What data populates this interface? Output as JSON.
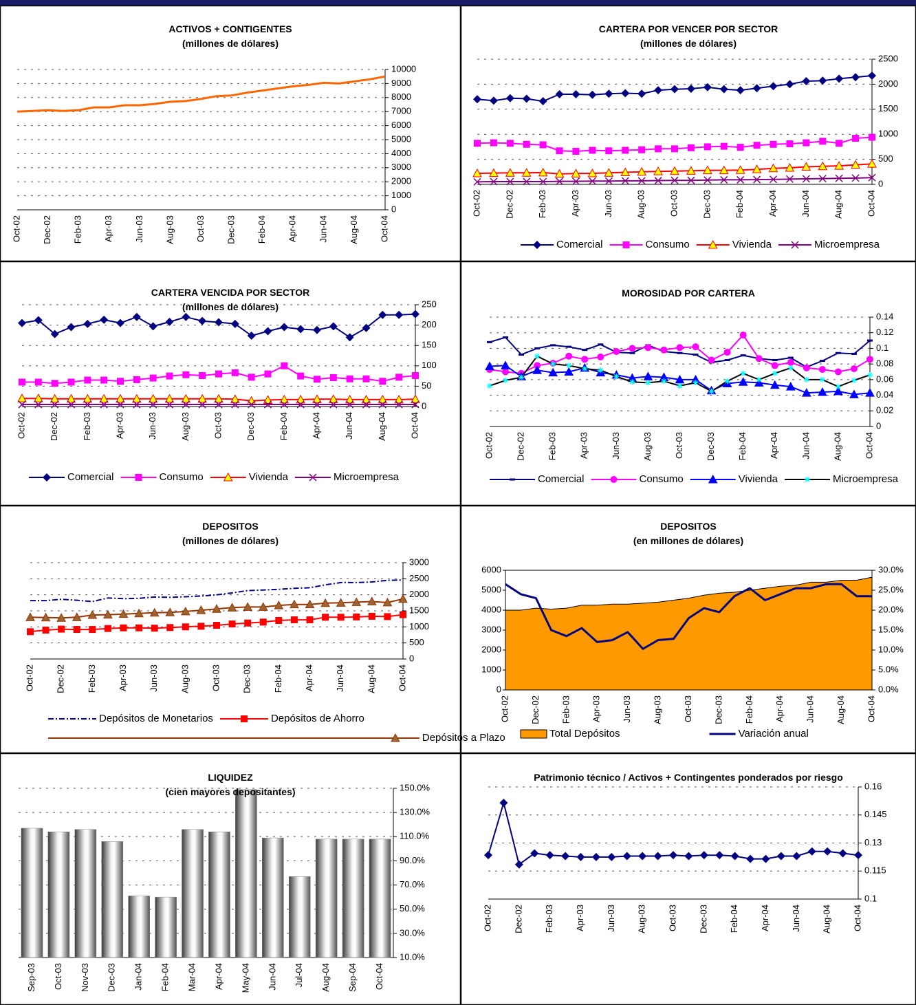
{
  "chart_data": [
    {
      "type": "line",
      "title": "ACTIVOS + CONTIGENTES",
      "subtitle": "(millones de dólares)",
      "categories": [
        "Oct-02",
        null,
        "Dec-02",
        null,
        "Feb-03",
        null,
        "Apr-03",
        null,
        "Jun-03",
        null,
        "Aug-03",
        null,
        "Oct-03",
        null,
        "Dec-03",
        null,
        "Feb-04",
        null,
        "Apr-04",
        null,
        "Jun-04",
        null,
        "Aug-04",
        null,
        "Oct-04"
      ],
      "series": [
        {
          "color": "#ff6600",
          "values": [
            7000,
            7050,
            7100,
            7050,
            7100,
            7300,
            7300,
            7450,
            7450,
            7550,
            7700,
            7750,
            7900,
            8100,
            8150,
            8350,
            8500,
            8650,
            8800,
            8900,
            9050,
            9000,
            9150,
            9300,
            9500
          ]
        }
      ],
      "ylim": [
        0,
        10000
      ],
      "yticks": [
        0,
        1000,
        2000,
        3000,
        4000,
        5000,
        6000,
        7000,
        8000,
        9000,
        10000
      ],
      "grid": true
    },
    {
      "type": "line",
      "title": "CARTERA POR VENCER POR SECTOR",
      "subtitle": "(millones de dólares)",
      "categories": [
        "Oct-02",
        null,
        "Dec-02",
        null,
        "Feb-03",
        null,
        "Apr-03",
        null,
        "Jun-03",
        null,
        "Aug-03",
        null,
        "Oct-03",
        null,
        "Dec-03",
        null,
        "Feb-04",
        null,
        "Apr-04",
        null,
        "Jun-04",
        null,
        "Aug-04",
        null,
        "Oct-04"
      ],
      "series": [
        {
          "name": "Comercial",
          "color": "#000080",
          "marker": "diamond",
          "values": [
            1700,
            1670,
            1720,
            1710,
            1660,
            1800,
            1800,
            1790,
            1810,
            1820,
            1810,
            1880,
            1900,
            1910,
            1940,
            1900,
            1880,
            1920,
            1960,
            2000,
            2060,
            2070,
            2110,
            2140,
            2170
          ]
        },
        {
          "name": "Consumo",
          "color": "#ff00ff",
          "marker": "square",
          "values": [
            820,
            830,
            820,
            800,
            790,
            670,
            660,
            680,
            670,
            680,
            690,
            710,
            710,
            730,
            750,
            760,
            740,
            780,
            800,
            810,
            830,
            860,
            820,
            920,
            940
          ]
        },
        {
          "name": "Vivienda",
          "color": "#ff0000",
          "marker": "triangle",
          "marker_color": "#ffff00",
          "values": [
            220,
            225,
            230,
            230,
            235,
            210,
            215,
            220,
            230,
            240,
            250,
            260,
            265,
            270,
            280,
            280,
            285,
            300,
            320,
            330,
            350,
            360,
            370,
            390,
            410
          ]
        },
        {
          "name": "Microempresa",
          "color": "#800080",
          "marker": "x",
          "values": [
            50,
            55,
            55,
            55,
            55,
            60,
            60,
            65,
            65,
            70,
            70,
            75,
            80,
            80,
            85,
            90,
            90,
            95,
            100,
            105,
            110,
            115,
            120,
            125,
            135
          ]
        }
      ],
      "ylim": [
        0,
        2500
      ],
      "yticks": [
        0,
        500,
        1000,
        1500,
        2000,
        2500
      ],
      "grid": true,
      "legend": "bottom"
    },
    {
      "type": "line",
      "title": "CARTERA VENCIDA POR SECTOR",
      "subtitle": "(millones de dólares)",
      "categories": [
        "Oct-02",
        null,
        "Dec-02",
        null,
        "Feb-03",
        null,
        "Apr-03",
        null,
        "Jun-03",
        null,
        "Aug-03",
        null,
        "Oct-03",
        null,
        "Dec-03",
        null,
        "Feb-04",
        null,
        "Apr-04",
        null,
        "Jun-04",
        null,
        "Aug-04",
        null,
        "Oct-04"
      ],
      "series": [
        {
          "name": "Comercial",
          "color": "#000080",
          "marker": "diamond",
          "values": [
            205,
            212,
            178,
            195,
            203,
            213,
            205,
            220,
            197,
            208,
            220,
            210,
            207,
            203,
            174,
            185,
            195,
            190,
            188,
            197,
            170,
            193,
            225,
            225,
            227
          ]
        },
        {
          "name": "Consumo",
          "color": "#ff00ff",
          "marker": "square",
          "values": [
            60,
            60,
            57,
            60,
            65,
            65,
            62,
            66,
            70,
            75,
            78,
            76,
            80,
            83,
            72,
            80,
            100,
            75,
            67,
            71,
            68,
            68,
            62,
            72,
            76
          ]
        },
        {
          "name": "Vivienda",
          "color": "#ff0000",
          "marker": "triangle",
          "marker_color": "#ffff00",
          "values": [
            20,
            20,
            19,
            19,
            19,
            19,
            19,
            19,
            19,
            19,
            19,
            19,
            19,
            18,
            14,
            16,
            17,
            17,
            18,
            18,
            17,
            17,
            17,
            17,
            18
          ]
        },
        {
          "name": "Microempresa",
          "color": "#800080",
          "marker": "x",
          "values": [
            5,
            5,
            5,
            5,
            5,
            5,
            5,
            5,
            5,
            5,
            5,
            5,
            5,
            5,
            5,
            5,
            5,
            5,
            5,
            5,
            5,
            5,
            5,
            5,
            5
          ]
        }
      ],
      "ylim": [
        0,
        250
      ],
      "yticks": [
        0,
        50,
        100,
        150,
        200,
        250
      ],
      "grid": true,
      "legend": "bottom"
    },
    {
      "type": "line",
      "title": "MOROSIDAD POR CARTERA",
      "categories": [
        "Oct-02",
        null,
        "Dec-02",
        null,
        "Feb-03",
        null,
        "Apr-03",
        null,
        "Jun-03",
        null,
        "Aug-03",
        null,
        "Oct-03",
        null,
        "Dec-03",
        null,
        "Feb-04",
        null,
        "Apr-04",
        null,
        "Jun-04",
        null,
        "Aug-04",
        null,
        "Oct-04"
      ],
      "series": [
        {
          "name": "Comercial",
          "color": "#000080",
          "marker": "dash",
          "values": [
            0.108,
            0.114,
            0.092,
            0.1,
            0.104,
            0.102,
            0.098,
            0.105,
            0.095,
            0.094,
            0.104,
            0.096,
            0.094,
            0.092,
            0.082,
            0.085,
            0.091,
            0.087,
            0.085,
            0.088,
            0.076,
            0.084,
            0.094,
            0.093,
            0.11
          ]
        },
        {
          "name": "Consumo",
          "color": "#ff00ff",
          "marker": "circle",
          "values": [
            0.073,
            0.07,
            0.068,
            0.078,
            0.081,
            0.09,
            0.086,
            0.089,
            0.096,
            0.1,
            0.101,
            0.098,
            0.101,
            0.102,
            0.085,
            0.095,
            0.117,
            0.087,
            0.078,
            0.082,
            0.075,
            0.073,
            0.07,
            0.074,
            0.086
          ]
        },
        {
          "name": "Vivienda",
          "color": "#0000ff",
          "marker": "triangle",
          "values": [
            0.077,
            0.078,
            0.064,
            0.072,
            0.069,
            0.07,
            0.075,
            0.069,
            0.066,
            0.062,
            0.064,
            0.063,
            0.06,
            0.06,
            0.046,
            0.055,
            0.057,
            0.056,
            0.053,
            0.051,
            0.043,
            0.044,
            0.045,
            0.041,
            0.043
          ]
        },
        {
          "name": "Microempresa",
          "color": "#000000",
          "marker": "star",
          "marker_color": "#00ffff",
          "values": [
            0.052,
            0.059,
            0.063,
            0.09,
            0.08,
            0.078,
            0.074,
            0.072,
            0.064,
            0.057,
            0.056,
            0.058,
            0.052,
            0.056,
            0.045,
            0.058,
            0.068,
            0.06,
            0.068,
            0.075,
            0.06,
            0.06,
            0.051,
            0.059,
            0.066
          ]
        }
      ],
      "ylim": [
        0,
        0.14
      ],
      "yticks": [
        0,
        0.02,
        0.04,
        0.06,
        0.08,
        0.1,
        0.12,
        0.14
      ],
      "grid": true,
      "legend": "bottom"
    },
    {
      "type": "line",
      "title": "DEPOSITOS",
      "subtitle": "(millones de dólares)",
      "categories": [
        "Oct-02",
        null,
        "Dec-02",
        null,
        "Feb-03",
        null,
        "Apr-03",
        null,
        "Jun-03",
        null,
        "Aug-03",
        null,
        "Oct-03",
        null,
        "Dec-03",
        null,
        "Feb-04",
        null,
        "Apr-04",
        null,
        "Jun-04",
        null,
        "Aug-04",
        null,
        "Oct-04"
      ],
      "series": [
        {
          "name": "Depósitos de Monetarios",
          "color": "#000080",
          "line_style": "dashdot",
          "values": [
            1820,
            1820,
            1860,
            1830,
            1790,
            1900,
            1880,
            1890,
            1930,
            1920,
            1940,
            1960,
            2000,
            2060,
            2130,
            2150,
            2170,
            2200,
            2220,
            2310,
            2380,
            2380,
            2400,
            2450,
            2460
          ]
        },
        {
          "name": "Depósitos de Ahorro",
          "color": "#ff0000",
          "marker": "square",
          "values": [
            850,
            900,
            930,
            920,
            920,
            950,
            970,
            970,
            960,
            980,
            1000,
            1020,
            1050,
            1090,
            1120,
            1150,
            1200,
            1220,
            1220,
            1300,
            1300,
            1310,
            1330,
            1320,
            1380
          ]
        },
        {
          "name": "Depósitos a Plazo",
          "color": "#993300",
          "marker": "triangle",
          "marker_color": "#996633",
          "values": [
            1300,
            1290,
            1280,
            1300,
            1370,
            1380,
            1400,
            1420,
            1440,
            1450,
            1480,
            1520,
            1560,
            1600,
            1620,
            1620,
            1670,
            1700,
            1700,
            1740,
            1750,
            1770,
            1790,
            1760,
            1870
          ]
        }
      ],
      "ylim": [
        0,
        3000
      ],
      "yticks": [
        0,
        500,
        1000,
        1500,
        2000,
        2500,
        3000
      ],
      "grid": true,
      "legend": "bottom"
    },
    {
      "type": "combo",
      "title": "DEPOSITOS",
      "subtitle": "(en millones de dólares)",
      "categories": [
        "Oct-02",
        null,
        "Dec-02",
        null,
        "Feb-03",
        null,
        "Apr-03",
        null,
        "Jun-03",
        null,
        "Aug-03",
        null,
        "Oct-03",
        null,
        "Dec-03",
        null,
        "Feb-04",
        null,
        "Apr-04",
        null,
        "Jun-04",
        null,
        "Aug-04",
        null,
        "Oct-04"
      ],
      "series": [
        {
          "name": "Total Depósitos",
          "kind": "area",
          "color": "#ff9900",
          "values": [
            4000,
            4000,
            4100,
            4050,
            4100,
            4250,
            4250,
            4300,
            4300,
            4350,
            4400,
            4500,
            4600,
            4750,
            4850,
            4900,
            5000,
            5100,
            5200,
            5250,
            5400,
            5400,
            5500,
            5500,
            5650
          ]
        },
        {
          "name": "Variación anual",
          "kind": "line",
          "axis": "y2",
          "color": "#000080",
          "values": [
            26.5,
            24,
            23,
            15,
            13.5,
            15.5,
            12,
            12.5,
            14.5,
            10.3,
            12.5,
            12.8,
            18,
            20.5,
            19.5,
            23.5,
            25.5,
            22.5,
            24,
            25.5,
            25.5,
            26.5,
            26.5,
            23.5,
            23.5
          ]
        }
      ],
      "ylim": [
        0,
        6000
      ],
      "yticks": [
        0,
        1000,
        2000,
        3000,
        4000,
        5000,
        6000
      ],
      "y2lim": [
        0,
        30
      ],
      "y2ticks": [
        {
          "value": 0,
          "label": "0.0%"
        },
        {
          "value": 5,
          "label": "5.0%"
        },
        {
          "value": 10,
          "label": "10.0%"
        },
        {
          "value": 15,
          "label": "15.0%"
        },
        {
          "value": 20,
          "label": "20.0%"
        },
        {
          "value": 25,
          "label": "25.0%"
        },
        {
          "value": 30,
          "label": "30.0%"
        }
      ],
      "grid": false,
      "legend": "bottom"
    },
    {
      "type": "bar",
      "title": "LIQUIDEZ",
      "subtitle": "(cien mayores depositantes)",
      "categories": [
        "Sep-03",
        "Oct-03",
        "Nov-03",
        "Dec-03",
        "Jan-04",
        "Feb-04",
        "Mar-04",
        "Apr-04",
        "May-04",
        "Jun-04",
        "Jul-04",
        "Aug-04",
        "Sep-04",
        "Oct-04"
      ],
      "series": [
        {
          "color": "#a0a0a0",
          "values": [
            117,
            114,
            116,
            106,
            61,
            60,
            116,
            114,
            149,
            109,
            77,
            108,
            108,
            108
          ]
        }
      ],
      "ylim": [
        10,
        150
      ],
      "yticks": [
        {
          "value": 10,
          "label": "10.0%"
        },
        {
          "value": 30,
          "label": "30.0%"
        },
        {
          "value": 50,
          "label": "50.0%"
        },
        {
          "value": 70,
          "label": "70.0%"
        },
        {
          "value": 90,
          "label": "90.0%"
        },
        {
          "value": 110,
          "label": "110.0%"
        },
        {
          "value": 130,
          "label": "130.0%"
        },
        {
          "value": 150,
          "label": "150.0%"
        }
      ],
      "grid": true
    },
    {
      "type": "line",
      "title": "Patrimonio técnico / Activos + Contingentes ponderados por riesgo",
      "categories": [
        "Oct-02",
        null,
        "Dec-02",
        null,
        "Feb-03",
        null,
        "Apr-03",
        null,
        "Jun-03",
        null,
        "Aug-03",
        null,
        "Oct-03",
        null,
        "Dec-03",
        null,
        "Feb-04",
        null,
        "Apr-04",
        null,
        "Jun-04",
        null,
        "Aug-04",
        null,
        "Oct-04"
      ],
      "series": [
        {
          "color": "#000080",
          "marker": "diamond",
          "values": [
            0.1235,
            0.1515,
            0.1185,
            0.1245,
            0.1235,
            0.123,
            0.1225,
            0.1225,
            0.1225,
            0.123,
            0.123,
            0.123,
            0.1235,
            0.123,
            0.1235,
            0.1235,
            0.123,
            0.1215,
            0.1215,
            0.123,
            0.123,
            0.1255,
            0.1255,
            0.1245,
            0.1235
          ]
        }
      ],
      "ylim": [
        0.1,
        0.16
      ],
      "yticks": [
        0.1,
        0.115,
        0.13,
        0.145,
        0.16
      ],
      "grid": true
    }
  ]
}
